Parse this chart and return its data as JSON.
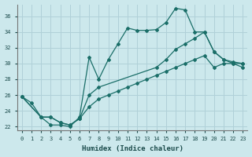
{
  "xlabel": "Humidex (Indice chaleur)",
  "bg_color": "#cce8ec",
  "grid_color": "#b0d0d8",
  "line_color": "#1a6e68",
  "xlim": [
    -0.5,
    23.5
  ],
  "ylim": [
    21.5,
    37.5
  ],
  "xticks": [
    0,
    1,
    2,
    3,
    4,
    5,
    6,
    7,
    8,
    9,
    10,
    11,
    12,
    13,
    14,
    15,
    16,
    17,
    18,
    19,
    20,
    21,
    22,
    23
  ],
  "yticks": [
    22,
    24,
    26,
    28,
    30,
    32,
    34,
    36
  ],
  "line1_x": [
    0,
    1,
    2,
    3,
    4,
    5,
    6,
    7,
    8,
    9,
    10,
    11,
    12,
    13,
    14,
    15,
    16,
    17,
    18,
    19,
    20,
    21,
    22,
    23
  ],
  "line1_y": [
    25.8,
    25.0,
    23.2,
    22.2,
    22.2,
    22.0,
    23.2,
    30.8,
    28.0,
    30.5,
    32.5,
    34.5,
    34.2,
    34.2,
    34.3,
    35.2,
    37.0,
    36.8,
    34.0,
    34.0,
    31.5,
    30.5,
    30.2,
    30.0
  ],
  "line2_x": [
    0,
    2,
    3,
    4,
    5,
    6,
    7,
    8,
    14,
    15,
    16,
    17,
    18,
    19,
    20,
    21,
    22,
    23
  ],
  "line2_y": [
    25.8,
    23.2,
    23.2,
    22.5,
    22.2,
    23.0,
    26.0,
    27.0,
    29.5,
    30.5,
    31.8,
    32.5,
    33.2,
    34.0,
    31.5,
    30.5,
    30.0,
    30.0
  ],
  "line3_x": [
    0,
    2,
    3,
    4,
    5,
    6,
    7,
    8,
    9,
    10,
    11,
    12,
    13,
    14,
    15,
    16,
    17,
    18,
    19,
    20,
    21,
    22,
    23
  ],
  "line3_y": [
    25.8,
    23.2,
    23.2,
    22.5,
    22.2,
    23.0,
    24.5,
    25.5,
    26.0,
    26.5,
    27.0,
    27.5,
    28.0,
    28.5,
    29.0,
    29.5,
    30.0,
    30.5,
    31.0,
    29.5,
    30.0,
    30.0,
    29.5
  ]
}
